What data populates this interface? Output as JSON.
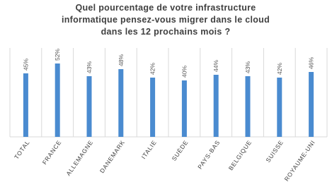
{
  "chart_data": {
    "type": "bar",
    "title": [
      "Quel pourcentage de votre infrastructure",
      "informatique pensez-vous migrer dans le cloud",
      "dans les 12 prochains mois ?"
    ],
    "categories": [
      "TOTAL",
      "FRANCE",
      "ALLEMAGNE",
      "DANEMARK",
      "ITALIE",
      "SUÈDE",
      "PAYS-BAS",
      "BELGIQUE",
      "SUISSE",
      "ROYAUME-UNI"
    ],
    "values": [
      45,
      52,
      43,
      48,
      42,
      40,
      44,
      43,
      42,
      46
    ],
    "value_labels": [
      "45%",
      "52%",
      "43%",
      "48%",
      "42%",
      "40%",
      "44%",
      "43%",
      "42%",
      "46%"
    ],
    "color": "#4a8bd0",
    "ylim": [
      0,
      63
    ]
  }
}
